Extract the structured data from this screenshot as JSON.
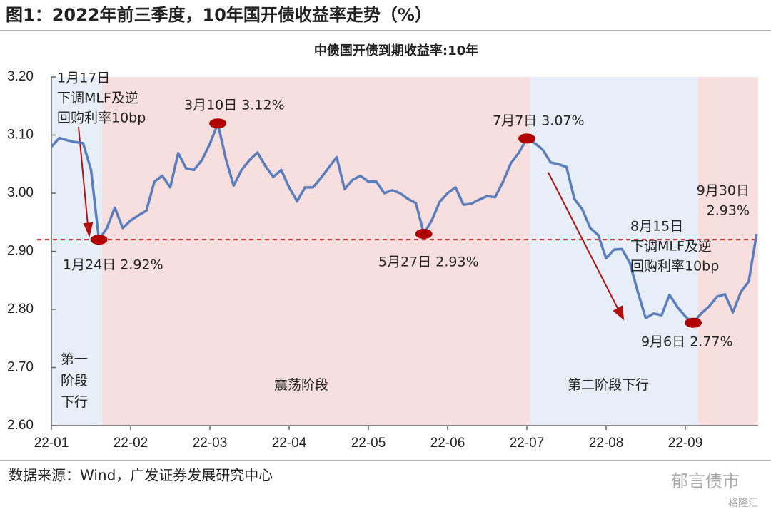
{
  "chart_data": {
    "type": "line",
    "title": "图1：2022年前三季度，10年国开债收益率走势（%）",
    "subtitle": "中债国开债到期收益率:10年",
    "source": "数据来源：Wind，广发证券发展研究中心",
    "watermark": "郁言债市",
    "watermark2": "格隆汇",
    "categories": [
      "22-01",
      null,
      null,
      null,
      null,
      null,
      null,
      null,
      null,
      null,
      "22-02",
      null,
      null,
      null,
      null,
      null,
      null,
      null,
      null,
      null,
      "22-03",
      null,
      null,
      null,
      null,
      null,
      null,
      null,
      null,
      null,
      "22-04",
      null,
      null,
      null,
      null,
      null,
      null,
      null,
      null,
      null,
      "22-05",
      null,
      null,
      null,
      null,
      null,
      null,
      null,
      null,
      null,
      "22-06",
      null,
      null,
      null,
      null,
      null,
      null,
      null,
      null,
      null,
      "22-07",
      null,
      null,
      null,
      null,
      null,
      null,
      null,
      null,
      null,
      "22-08",
      null,
      null,
      null,
      null,
      null,
      null,
      null,
      null,
      null,
      "22-09",
      null,
      null,
      null,
      null,
      null,
      null,
      null,
      null,
      null
    ],
    "series": [
      {
        "name": "中债国开债到期收益率:10年",
        "color": "#5a7ebd",
        "values": [
          3.08,
          3.095,
          3.091,
          3.088,
          3.086,
          3.04,
          2.92,
          2.94,
          2.975,
          2.94,
          2.953,
          2.962,
          2.97,
          3.02,
          3.03,
          3.01,
          3.069,
          3.043,
          3.04,
          3.057,
          3.085,
          3.12,
          3.06,
          3.013,
          3.04,
          3.057,
          3.07,
          3.047,
          3.028,
          3.04,
          3.01,
          2.986,
          3.01,
          3.01,
          3.026,
          3.044,
          3.062,
          3.007,
          3.023,
          3.03,
          3.02,
          3.02,
          3.0,
          3.005,
          3.0,
          2.99,
          2.983,
          2.93,
          2.953,
          2.985,
          3.0,
          3.01,
          2.98,
          2.982,
          2.989,
          2.995,
          2.993,
          3.02,
          3.052,
          3.07,
          3.094,
          3.086,
          3.075,
          3.053,
          3.05,
          3.045,
          2.99,
          2.972,
          2.94,
          2.928,
          2.888,
          2.903,
          2.904,
          2.88,
          2.83,
          2.785,
          2.793,
          2.79,
          2.825,
          2.804,
          2.788,
          2.777,
          2.793,
          2.805,
          2.822,
          2.826,
          2.795,
          2.83,
          2.848,
          2.93
        ]
      }
    ],
    "ylim": [
      2.6,
      3.2
    ],
    "yticks": [
      {
        "value": 3.2,
        "label": "3.20"
      },
      {
        "value": 3.1,
        "label": "3.10"
      },
      {
        "value": 3.0,
        "label": "3.00"
      },
      {
        "value": 2.9,
        "label": "2.90"
      },
      {
        "value": 2.8,
        "label": "2.80"
      },
      {
        "value": 2.7,
        "label": "2.70"
      },
      {
        "value": 2.6,
        "label": "2.60"
      }
    ],
    "grid": false,
    "hline": {
      "value": 2.92,
      "color": "#c00000"
    },
    "marker_color": "#b00000",
    "phases": [
      {
        "lines": [
          "第一",
          "阶段",
          "下行"
        ],
        "color": "#e8eef8"
      },
      {
        "lines": [
          "震荡阶段"
        ],
        "color": "#f8dfdf"
      },
      {
        "lines": [
          "第二阶段下行"
        ],
        "color": "#e8eef8"
      },
      {
        "lines": [],
        "color": "#f8dfdf"
      }
    ],
    "annotations": [
      {
        "lines": [
          "1月17日",
          "下调MLF及逆",
          "回购利率10bp"
        ]
      },
      {
        "lines": [
          "1月24日  2.92%"
        ]
      },
      {
        "lines": [
          "3月10日  3.12%"
        ]
      },
      {
        "lines": [
          "5月27日  2.93%"
        ]
      },
      {
        "lines": [
          "7月7日  3.07%"
        ]
      },
      {
        "lines": [
          "8月15日",
          "下调MLF及逆",
          "回购利率10bp"
        ]
      },
      {
        "lines": [
          "9月6日  2.77%"
        ]
      },
      {
        "lines": [
          "9月30日",
          "2.93%"
        ]
      }
    ]
  }
}
